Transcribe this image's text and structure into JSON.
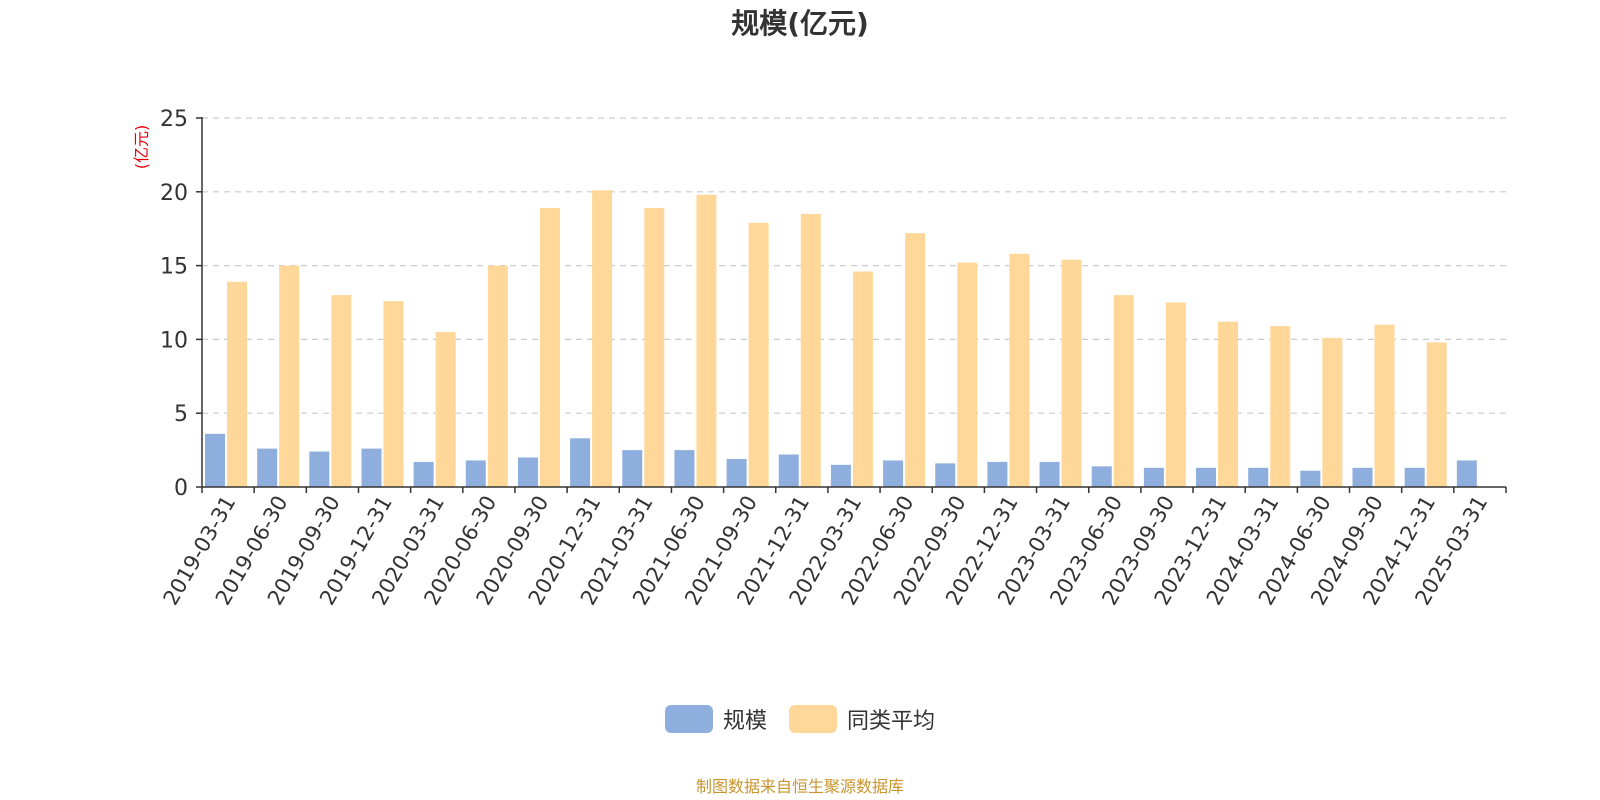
{
  "source_note": "制图数据来自恒生聚源数据库",
  "colors": {
    "series_0": "#8EAFDD",
    "series_1": "#FFD899",
    "unit_label": "#E8000B",
    "source_note": "#C9952E",
    "grid": "#CCCCCC",
    "axis": "#333333",
    "text": "#333333"
  },
  "chart_data": {
    "type": "bar",
    "title": "规模(亿元)",
    "ylabel": "(亿元)",
    "xlabel": "",
    "ylim": [
      0,
      25
    ],
    "yticks": [
      0,
      5,
      10,
      15,
      20,
      25
    ],
    "grid": true,
    "legend_position": "bottom",
    "categories": [
      "2019-03-31",
      "2019-06-30",
      "2019-09-30",
      "2019-12-31",
      "2020-03-31",
      "2020-06-30",
      "2020-09-30",
      "2020-12-31",
      "2021-03-31",
      "2021-06-30",
      "2021-09-30",
      "2021-12-31",
      "2022-03-31",
      "2022-06-30",
      "2022-09-30",
      "2022-12-31",
      "2023-03-31",
      "2023-06-30",
      "2023-09-30",
      "2023-12-31",
      "2024-03-31",
      "2024-06-30",
      "2024-09-30",
      "2024-12-31",
      "2025-03-31"
    ],
    "series": [
      {
        "name": "规模",
        "values": [
          3.6,
          2.6,
          2.4,
          2.6,
          1.7,
          1.8,
          2.0,
          3.3,
          2.5,
          2.5,
          1.9,
          2.2,
          1.5,
          1.8,
          1.6,
          1.7,
          1.7,
          1.4,
          1.3,
          1.3,
          1.3,
          1.1,
          1.3,
          1.3,
          1.8
        ]
      },
      {
        "name": "同类平均",
        "values": [
          13.9,
          15.0,
          13.0,
          12.6,
          10.5,
          15.0,
          18.9,
          20.1,
          18.9,
          19.8,
          17.9,
          18.5,
          14.6,
          17.2,
          15.2,
          15.8,
          15.4,
          13.0,
          12.5,
          11.2,
          10.9,
          10.1,
          11.0,
          9.8,
          null
        ]
      }
    ]
  }
}
